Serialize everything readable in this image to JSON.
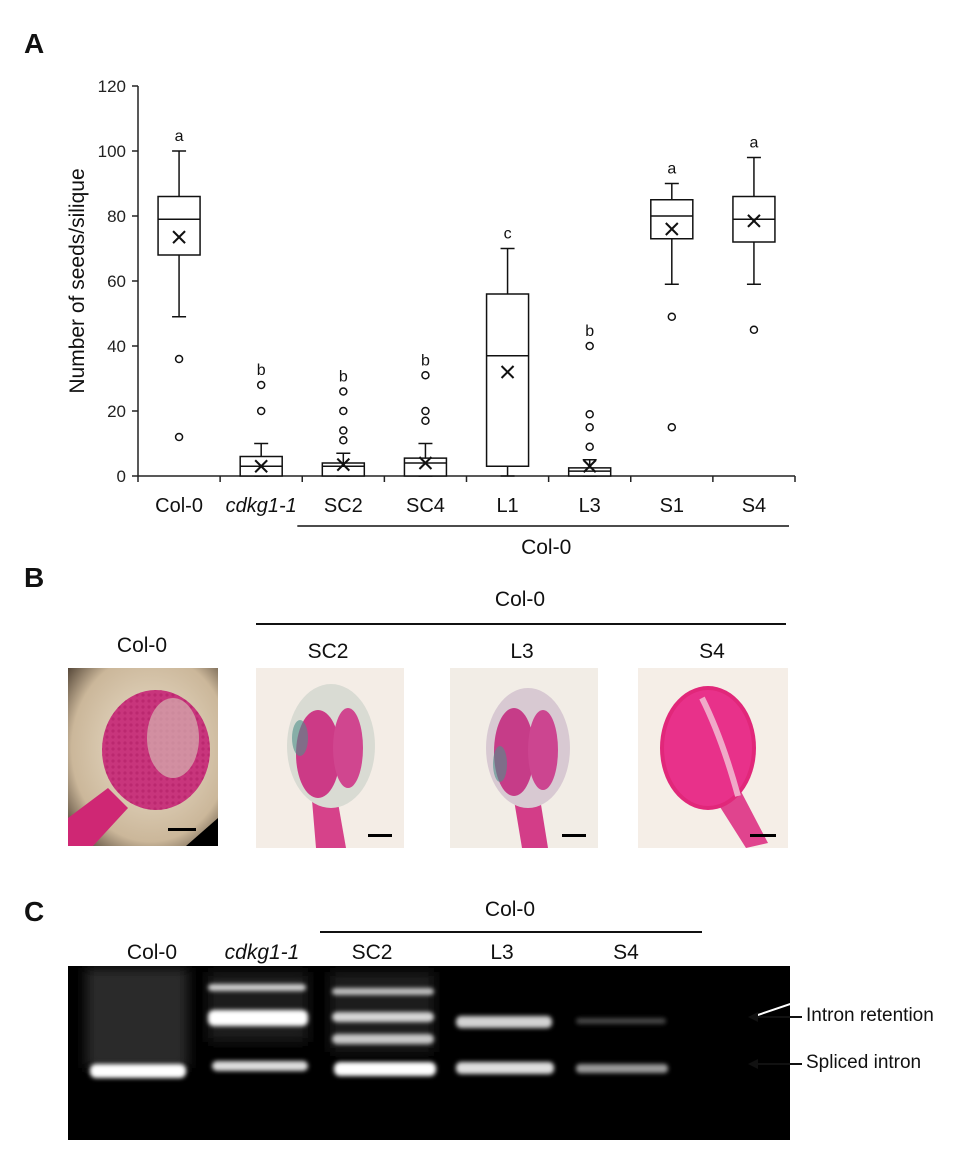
{
  "panels": {
    "a": "A",
    "b": "B",
    "c": "C"
  },
  "chart_data": {
    "type": "box",
    "ylabel": "Number of seeds/silique",
    "ylim": [
      0,
      120
    ],
    "yticks": [
      0,
      20,
      40,
      60,
      80,
      100,
      120
    ],
    "group_label": "Col-0",
    "categories": [
      "Col-0",
      "cdkg1-1",
      "SC2",
      "SC4",
      "L1",
      "L3",
      "S1",
      "S4"
    ],
    "italic_categories": [
      "cdkg1-1"
    ],
    "boxes": [
      {
        "name": "Col-0",
        "whisker_low": 49,
        "q1": 68,
        "median": 79,
        "q3": 86,
        "whisker_high": 100,
        "mean": 73.5,
        "outliers": [
          36,
          12
        ],
        "letter": "a"
      },
      {
        "name": "cdkg1-1",
        "whisker_low": 0,
        "q1": 0,
        "median": 3,
        "q3": 6,
        "whisker_high": 10,
        "mean": 3,
        "outliers": [
          28,
          20
        ],
        "letter": "b"
      },
      {
        "name": "SC2",
        "whisker_low": 0,
        "q1": 0,
        "median": 3,
        "q3": 4,
        "whisker_high": 7,
        "mean": 3.5,
        "outliers": [
          26,
          20,
          14,
          11
        ],
        "letter": "b"
      },
      {
        "name": "SC4",
        "whisker_low": 0,
        "q1": 0,
        "median": 4,
        "q3": 5.5,
        "whisker_high": 10,
        "mean": 4,
        "outliers": [
          31,
          20,
          17
        ],
        "letter": "b"
      },
      {
        "name": "L1",
        "whisker_low": 0,
        "q1": 3,
        "median": 37,
        "q3": 56,
        "whisker_high": 70,
        "mean": 32,
        "outliers": [],
        "letter": "c"
      },
      {
        "name": "L3",
        "whisker_low": 0,
        "q1": 0,
        "median": 1.5,
        "q3": 2.5,
        "whisker_high": 5,
        "mean": 3,
        "outliers": [
          40,
          19,
          15,
          9
        ],
        "letter": "b"
      },
      {
        "name": "S1",
        "whisker_low": 59,
        "q1": 73,
        "median": 80,
        "q3": 85,
        "whisker_high": 90,
        "mean": 76,
        "outliers": [
          49,
          15
        ],
        "letter": "a"
      },
      {
        "name": "S4",
        "whisker_low": 59,
        "q1": 72,
        "median": 79,
        "q3": 86,
        "whisker_high": 98,
        "mean": 78.5,
        "outliers": [
          45
        ],
        "letter": "a"
      }
    ]
  },
  "panel_b": {
    "group_label": "Col-0",
    "images": [
      {
        "label": "Col-0"
      },
      {
        "label": "SC2"
      },
      {
        "label": "L3"
      },
      {
        "label": "S4"
      }
    ]
  },
  "panel_c": {
    "group_label": "Col-0",
    "lanes": [
      "Col-0",
      "cdkg1-1",
      "SC2",
      "L3",
      "S4"
    ],
    "italic_lanes": [
      "cdkg1-1"
    ],
    "band_labels": {
      "intron_retention": "Intron retention",
      "spliced_intron": "Spliced intron"
    }
  },
  "colors": {
    "gel_background": "#000000",
    "band": "#ffffff",
    "stain_magenta": "#d6287a",
    "photo_background": "#f3ece4"
  }
}
